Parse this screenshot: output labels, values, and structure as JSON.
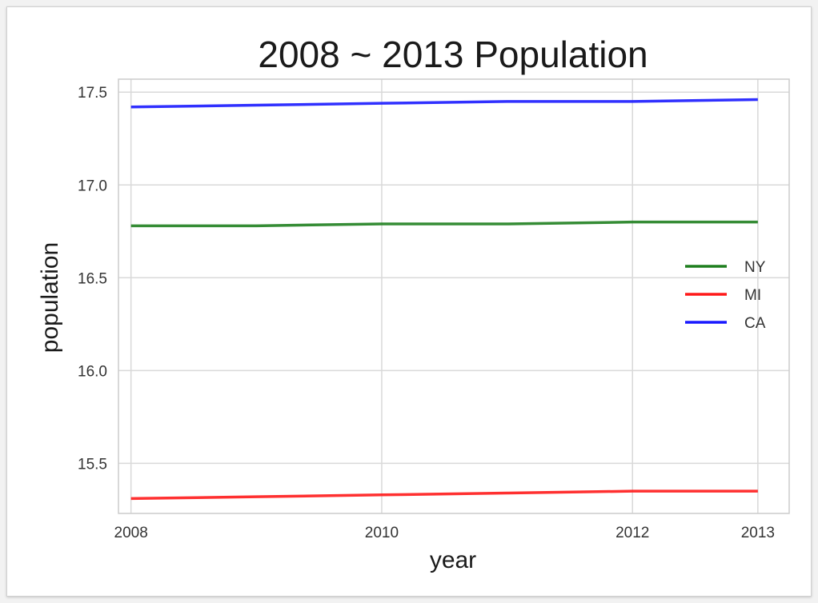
{
  "chart_data": {
    "type": "line",
    "title": "2008 ~ 2013 Population",
    "xlabel": "year",
    "ylabel": "population",
    "x": [
      2008,
      2009,
      2010,
      2011,
      2012,
      2013
    ],
    "xticks": [
      "2008",
      "2010",
      "2012",
      "2013"
    ],
    "yticks": [
      "15.5",
      "16.0",
      "16.5",
      "17.0",
      "17.5"
    ],
    "xlim": [
      2007.9,
      2013.25
    ],
    "ylim": [
      15.23,
      17.57
    ],
    "grid": true,
    "legend_position": "right",
    "series": [
      {
        "name": "NY",
        "color": "#1f7f1f",
        "values": [
          16.78,
          16.78,
          16.79,
          16.79,
          16.8,
          16.8
        ]
      },
      {
        "name": "MI",
        "color": "#ff1a1a",
        "values": [
          15.31,
          15.32,
          15.33,
          15.34,
          15.35,
          15.35
        ]
      },
      {
        "name": "CA",
        "color": "#1a1aff",
        "values": [
          17.42,
          17.43,
          17.44,
          17.45,
          17.45,
          17.46
        ]
      }
    ]
  }
}
